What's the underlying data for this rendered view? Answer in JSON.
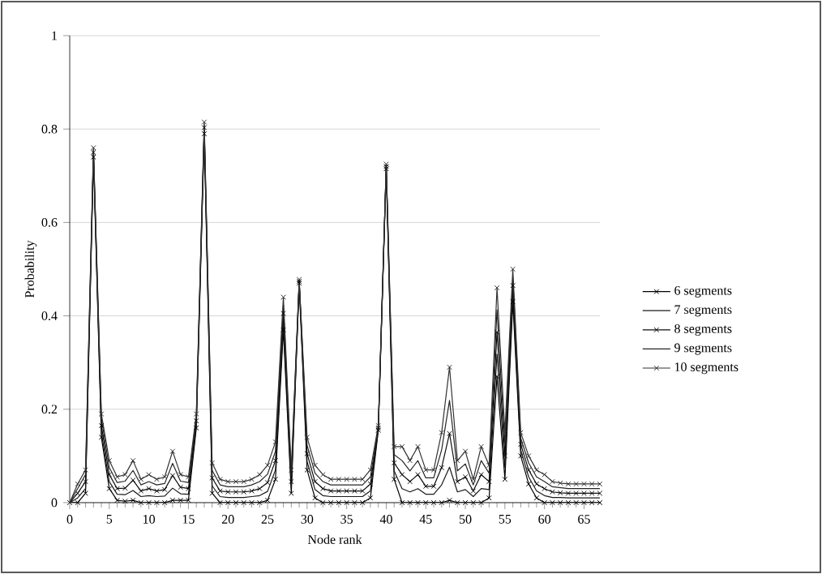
{
  "chart_data": {
    "type": "line",
    "xlabel": "Node rank",
    "ylabel": "Probability",
    "x": [
      0,
      1,
      2,
      3,
      4,
      5,
      6,
      7,
      8,
      9,
      10,
      11,
      12,
      13,
      14,
      15,
      16,
      17,
      18,
      19,
      20,
      21,
      22,
      23,
      24,
      25,
      26,
      27,
      28,
      29,
      30,
      31,
      32,
      33,
      34,
      35,
      36,
      37,
      38,
      39,
      40,
      41,
      42,
      43,
      44,
      45,
      46,
      47,
      48,
      49,
      50,
      51,
      52,
      53,
      54,
      55,
      56,
      57,
      58,
      59,
      60,
      61,
      62,
      63,
      64,
      65,
      66,
      67
    ],
    "xlim": [
      0,
      67
    ],
    "xticks": [
      0,
      5,
      10,
      15,
      20,
      25,
      30,
      35,
      40,
      45,
      50,
      55,
      60,
      65
    ],
    "ylim": [
      0,
      1
    ],
    "yticks": [
      0,
      0.2,
      0.4,
      0.6,
      0.8,
      1
    ],
    "grid": "y",
    "legend": "right",
    "series": [
      {
        "name": "6 segments",
        "color": "#000000",
        "marker": "cross",
        "values": [
          0,
          0,
          0.02,
          0.74,
          0.14,
          0.03,
          0.005,
          0.003,
          0.005,
          0,
          0,
          0,
          0,
          0.005,
          0.005,
          0.005,
          0.16,
          0.79,
          0.02,
          0,
          0,
          0,
          0,
          0,
          0,
          0.005,
          0.05,
          0.37,
          0.02,
          0.47,
          0.07,
          0.01,
          0,
          0,
          0,
          0,
          0,
          0,
          0.01,
          0.155,
          0.715,
          0.05,
          0,
          0,
          0,
          0,
          0,
          0,
          0.005,
          0,
          0,
          0,
          0,
          0.01,
          0.27,
          0.05,
          0.43,
          0.1,
          0.04,
          0.01,
          0,
          0,
          0,
          0,
          0,
          0,
          0,
          0
        ]
      },
      {
        "name": "7 segments",
        "color": "#1a1a1a",
        "marker": "none",
        "values": [
          0,
          0.01,
          0.03,
          0.745,
          0.15,
          0.045,
          0.018,
          0.017,
          0.026,
          0.013,
          0.015,
          0.013,
          0.014,
          0.031,
          0.019,
          0.018,
          0.168,
          0.796,
          0.036,
          0.013,
          0.011,
          0.011,
          0.011,
          0.013,
          0.015,
          0.024,
          0.07,
          0.388,
          0.033,
          0.472,
          0.088,
          0.028,
          0.015,
          0.013,
          0.013,
          0.013,
          0.013,
          0.013,
          0.025,
          0.158,
          0.718,
          0.068,
          0.03,
          0.023,
          0.03,
          0.018,
          0.018,
          0.038,
          0.076,
          0.023,
          0.028,
          0.013,
          0.03,
          0.028,
          0.318,
          0.075,
          0.448,
          0.113,
          0.055,
          0.025,
          0.015,
          0.011,
          0.011,
          0.01,
          0.01,
          0.01,
          0.01,
          0.01
        ]
      },
      {
        "name": "8 segments",
        "color": "#0d0d0d",
        "marker": "cross",
        "values": [
          0,
          0.02,
          0.045,
          0.75,
          0.165,
          0.06,
          0.03,
          0.031,
          0.048,
          0.025,
          0.03,
          0.025,
          0.028,
          0.058,
          0.033,
          0.03,
          0.175,
          0.803,
          0.053,
          0.025,
          0.023,
          0.023,
          0.023,
          0.025,
          0.03,
          0.043,
          0.09,
          0.405,
          0.045,
          0.474,
          0.105,
          0.045,
          0.03,
          0.025,
          0.025,
          0.025,
          0.025,
          0.025,
          0.04,
          0.16,
          0.72,
          0.085,
          0.06,
          0.045,
          0.06,
          0.035,
          0.035,
          0.075,
          0.148,
          0.045,
          0.055,
          0.025,
          0.06,
          0.045,
          0.365,
          0.1,
          0.465,
          0.125,
          0.07,
          0.04,
          0.03,
          0.023,
          0.021,
          0.02,
          0.02,
          0.02,
          0.02,
          0.02
        ]
      },
      {
        "name": "9 segments",
        "color": "#262626",
        "marker": "none",
        "values": [
          0,
          0.03,
          0.06,
          0.755,
          0.18,
          0.075,
          0.043,
          0.046,
          0.069,
          0.038,
          0.045,
          0.038,
          0.041,
          0.084,
          0.046,
          0.043,
          0.183,
          0.809,
          0.069,
          0.038,
          0.034,
          0.034,
          0.034,
          0.038,
          0.045,
          0.061,
          0.11,
          0.423,
          0.058,
          0.476,
          0.123,
          0.063,
          0.045,
          0.038,
          0.038,
          0.038,
          0.038,
          0.038,
          0.055,
          0.163,
          0.723,
          0.103,
          0.09,
          0.068,
          0.09,
          0.053,
          0.053,
          0.113,
          0.219,
          0.068,
          0.083,
          0.038,
          0.09,
          0.063,
          0.413,
          0.125,
          0.483,
          0.138,
          0.085,
          0.055,
          0.045,
          0.034,
          0.032,
          0.03,
          0.03,
          0.03,
          0.03,
          0.03
        ]
      },
      {
        "name": "10 segments",
        "color": "#333333",
        "marker": "cross",
        "values": [
          0,
          0.04,
          0.07,
          0.76,
          0.19,
          0.09,
          0.055,
          0.06,
          0.09,
          0.05,
          0.06,
          0.05,
          0.055,
          0.11,
          0.06,
          0.055,
          0.19,
          0.815,
          0.085,
          0.05,
          0.045,
          0.045,
          0.045,
          0.05,
          0.06,
          0.08,
          0.13,
          0.44,
          0.07,
          0.478,
          0.14,
          0.08,
          0.06,
          0.05,
          0.05,
          0.05,
          0.05,
          0.05,
          0.07,
          0.165,
          0.725,
          0.12,
          0.12,
          0.09,
          0.12,
          0.07,
          0.07,
          0.15,
          0.29,
          0.09,
          0.11,
          0.05,
          0.12,
          0.08,
          0.46,
          0.15,
          0.5,
          0.15,
          0.1,
          0.07,
          0.06,
          0.045,
          0.042,
          0.04,
          0.04,
          0.04,
          0.04,
          0.04
        ]
      }
    ]
  }
}
